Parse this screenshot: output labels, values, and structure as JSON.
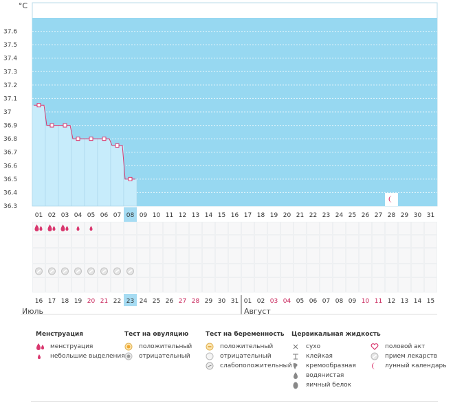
{
  "chart_data": {
    "type": "line",
    "ylabel": "°C",
    "ylim": [
      36.3,
      37.7
    ],
    "y_ticks": [
      "37.6",
      "37.5",
      "37.4",
      "37.3",
      "37.2",
      "37.1",
      "37",
      "36.9",
      "36.8",
      "36.7",
      "36.6",
      "36.5",
      "36.4",
      "36.3"
    ],
    "cycle_days": [
      "01",
      "02",
      "03",
      "04",
      "05",
      "06",
      "07",
      "08",
      "09",
      "10",
      "11",
      "12",
      "13",
      "14",
      "15",
      "16",
      "17",
      "18",
      "19",
      "20",
      "21",
      "22",
      "23",
      "24",
      "25",
      "26",
      "27",
      "28",
      "29",
      "30",
      "31"
    ],
    "current_day_index": 7,
    "temperature_series": [
      {
        "day": "01",
        "value": 37.05
      },
      {
        "day": "02",
        "value": 36.9
      },
      {
        "day": "03",
        "value": 36.9
      },
      {
        "day": "04",
        "value": 36.8
      },
      {
        "day": "05",
        "value": 36.8
      },
      {
        "day": "06",
        "value": 36.8
      },
      {
        "day": "07",
        "value": 36.75
      },
      {
        "day": "08",
        "value": 36.5
      }
    ],
    "menstruation": [
      {
        "day_index": 0,
        "type": "heavy"
      },
      {
        "day_index": 1,
        "type": "heavy"
      },
      {
        "day_index": 2,
        "type": "heavy"
      },
      {
        "day_index": 3,
        "type": "light"
      },
      {
        "day_index": 4,
        "type": "light"
      }
    ],
    "medication_days": [
      0,
      1,
      2,
      3,
      4,
      5,
      6,
      7
    ],
    "lunar_marker_day_index": 27,
    "calendar_dates": [
      {
        "label": "16",
        "red": false
      },
      {
        "label": "17",
        "red": false
      },
      {
        "label": "18",
        "red": false
      },
      {
        "label": "19",
        "red": false
      },
      {
        "label": "20",
        "red": true
      },
      {
        "label": "21",
        "red": true
      },
      {
        "label": "22",
        "red": false
      },
      {
        "label": "23",
        "red": false
      },
      {
        "label": "24",
        "red": false
      },
      {
        "label": "25",
        "red": false
      },
      {
        "label": "26",
        "red": false
      },
      {
        "label": "27",
        "red": true
      },
      {
        "label": "28",
        "red": true
      },
      {
        "label": "29",
        "red": false
      },
      {
        "label": "30",
        "red": false
      },
      {
        "label": "31",
        "red": false
      },
      {
        "label": "01",
        "red": false
      },
      {
        "label": "02",
        "red": false
      },
      {
        "label": "03",
        "red": true
      },
      {
        "label": "04",
        "red": true
      },
      {
        "label": "05",
        "red": false
      },
      {
        "label": "06",
        "red": false
      },
      {
        "label": "07",
        "red": false
      },
      {
        "label": "08",
        "red": false
      },
      {
        "label": "09",
        "red": false
      },
      {
        "label": "10",
        "red": true
      },
      {
        "label": "11",
        "red": true
      },
      {
        "label": "12",
        "red": false
      },
      {
        "label": "13",
        "red": false
      },
      {
        "label": "14",
        "red": false
      },
      {
        "label": "15",
        "red": false
      }
    ]
  },
  "months": {
    "first": "Июль",
    "second": "Август"
  },
  "colors": {
    "bg_blue": "#97d8f1",
    "fill_light": "#c7ecfb",
    "line": "#d9376e",
    "current_day": "#a6dcf3",
    "grid": "#eef0f2"
  },
  "legend": {
    "menstruation": {
      "title": "Менструация",
      "items": [
        "менструация",
        "небольшие выделения"
      ]
    },
    "ovulation_test": {
      "title": "Тест на овуляцию",
      "items": [
        "положительный",
        "отрицательный"
      ]
    },
    "pregnancy_test": {
      "title": "Тест на беременность",
      "items": [
        "положительный",
        "отрицательный",
        "слабоположительный"
      ]
    },
    "cervical_fluid": {
      "title": "Цервикальная жидкость",
      "items": [
        "сухо",
        "клейкая",
        "кремообразная",
        "водянистая",
        "яичный белок"
      ]
    },
    "other": {
      "items": [
        "половой акт",
        "прием лекарств",
        "лунный календарь"
      ]
    }
  }
}
